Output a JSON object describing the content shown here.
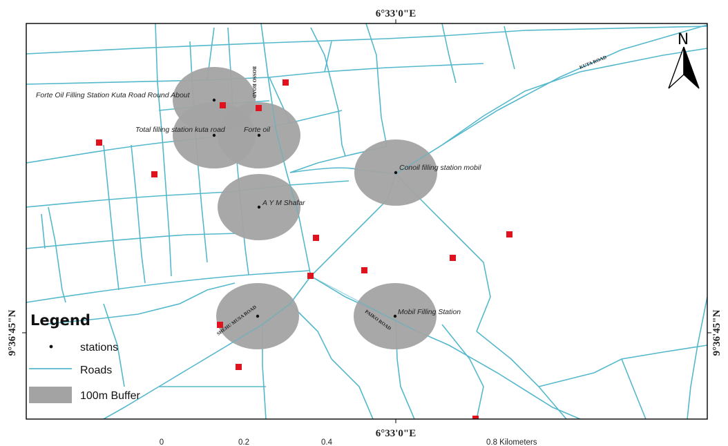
{
  "map": {
    "coordinates": {
      "top_longitude": "6°33'0\"E",
      "bottom_longitude": "6°33'0\"E",
      "left_latitude": "9°36'45\"N",
      "right_latitude": "9°36'45\"N"
    },
    "north_arrow": {
      "label": "N",
      "icon": "north-arrow-icon"
    },
    "road_labels": {
      "kuta_road": "KUTA ROAD",
      "bosso_road": "BOSSO ROAD",
      "shehu_musa_road": "SHEHU MUSA ROAD",
      "paiko_road": "PAIKO ROAD"
    },
    "stations": [
      {
        "name": "Forte Oil Filling Station Kuta Road Round About"
      },
      {
        "name": "Total filling station kuta road"
      },
      {
        "name": "Forte oil"
      },
      {
        "name": "Conoil filling station mobil"
      },
      {
        "name": "A Y M Shafar"
      },
      {
        "name": "Mobil Filling Station"
      }
    ],
    "buffer_distance": "100m",
    "colors": {
      "road": "#54b8cc",
      "buffer": "#a3a3a3",
      "red_marker": "#e0121d",
      "station_dot": "#111111",
      "frame": "#000000"
    }
  },
  "legend": {
    "title": "Legend",
    "items": [
      {
        "label": "stations",
        "symbol": "dot"
      },
      {
        "label": "Roads",
        "symbol": "line"
      },
      {
        "label": "100m Buffer",
        "symbol": "gray-box"
      }
    ]
  },
  "scale_bar": {
    "ticks": [
      "0",
      "0.2",
      "0.4",
      "0.8 Kilometers"
    ]
  }
}
